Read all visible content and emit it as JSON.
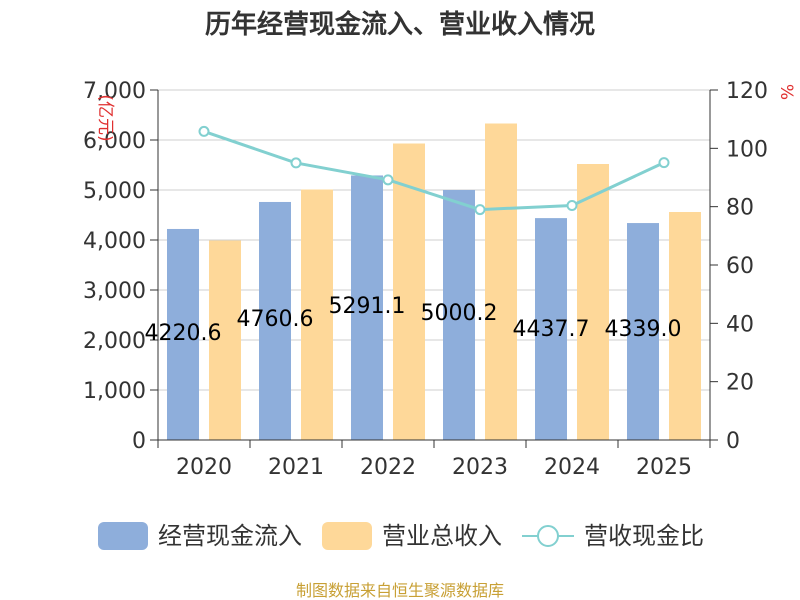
{
  "chart_data": {
    "type": "bar",
    "title": "历年经营现金流入、营业收入情况",
    "categories": [
      "2020",
      "2021",
      "2022",
      "2023",
      "2024",
      "2025"
    ],
    "series": [
      {
        "name": "经营现金流入",
        "type": "bar",
        "axis": "left",
        "color": "#8eaedb",
        "values": [
          4220.6,
          4760.6,
          5291.1,
          5000.2,
          4437.7,
          4339.0
        ]
      },
      {
        "name": "营业总收入",
        "type": "bar",
        "axis": "left",
        "color": "#fed899",
        "values": [
          3990,
          5010,
          5930,
          6330,
          5520,
          4560
        ]
      },
      {
        "name": "营收现金比",
        "type": "line",
        "axis": "right",
        "color": "#82d0d0",
        "values": [
          105.8,
          95.0,
          89.2,
          79.0,
          80.4,
          95.1
        ]
      }
    ],
    "data_labels": [
      "4220.6",
      "4760.6",
      "5291.1",
      "5000.2",
      "4437.7",
      "4339.0"
    ],
    "ylabel": "(亿元)",
    "ylabel_right": "%",
    "ylim": [
      0,
      7000
    ],
    "yticks": [
      "0",
      "1,000",
      "2,000",
      "3,000",
      "4,000",
      "5,000",
      "6,000",
      "7,000"
    ],
    "ylim_right": [
      0,
      120
    ],
    "yticks_right": [
      "0",
      "20",
      "40",
      "60",
      "80",
      "100",
      "120"
    ],
    "grid": true,
    "legend_position": "bottom"
  },
  "source": "制图数据来自恒生聚源数据库"
}
